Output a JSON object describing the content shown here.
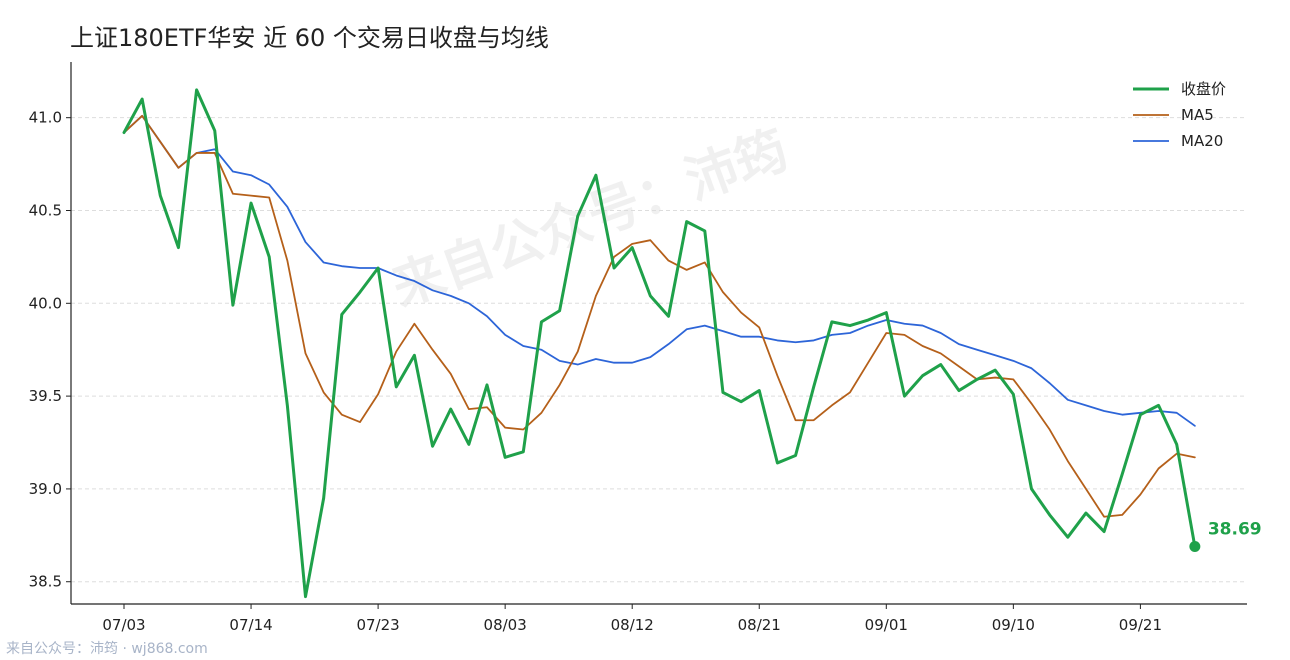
{
  "title": "上证180ETF华安 近 60 个交易日收盘与均线",
  "watermark": "来自公众号：沛筠",
  "footer": "来自公众号：沛筠 · wj868.com",
  "colors": {
    "close": "#1fa14a",
    "ma5": "#b5601a",
    "ma20": "#2d65d8",
    "grid": "#dddddd",
    "axis": "#222222"
  },
  "chart_data": {
    "type": "line",
    "title": "上证180ETF华安 近 60 个交易日收盘与均线",
    "x_tick_labels": [
      "07/03",
      "07/14",
      "07/23",
      "08/03",
      "08/12",
      "08/21",
      "09/01",
      "09/10",
      "09/21"
    ],
    "x_tick_indices": [
      0,
      7,
      14,
      21,
      28,
      35,
      42,
      49,
      56
    ],
    "ylim": [
      38.38,
      41.3
    ],
    "y_ticks": [
      38.5,
      39.0,
      39.5,
      40.0,
      40.5,
      41.0
    ],
    "grid": "horizontal dashed",
    "legend_position": "top-right",
    "n_points": 60,
    "series": [
      {
        "name": "收盘价",
        "key": "close",
        "values": [
          40.92,
          41.1,
          40.58,
          40.3,
          41.15,
          40.93,
          39.99,
          40.54,
          40.25,
          39.45,
          38.42,
          38.95,
          39.94,
          40.06,
          40.19,
          39.55,
          39.72,
          39.23,
          39.43,
          39.24,
          39.56,
          39.17,
          39.2,
          39.9,
          39.96,
          40.47,
          40.69,
          40.19,
          40.3,
          40.04,
          39.93,
          40.44,
          40.39,
          39.52,
          39.47,
          39.53,
          39.14,
          39.18,
          39.55,
          39.9,
          39.88,
          39.91,
          39.95,
          39.5,
          39.61,
          39.67,
          39.53,
          39.59,
          39.64,
          39.51,
          39.0,
          38.86,
          38.74,
          38.87,
          38.77,
          39.08,
          39.4,
          39.45,
          39.24,
          38.69
        ]
      },
      {
        "name": "MA5",
        "key": "ma5",
        "values": [
          40.92,
          41.01,
          40.87,
          40.73,
          40.81,
          40.81,
          40.59,
          40.58,
          40.57,
          40.23,
          39.73,
          39.52,
          39.4,
          39.36,
          39.51,
          39.74,
          39.89,
          39.75,
          39.62,
          39.43,
          39.44,
          39.33,
          39.32,
          39.41,
          39.56,
          39.74,
          40.04,
          40.25,
          40.32,
          40.34,
          40.23,
          40.18,
          40.22,
          40.06,
          39.95,
          39.87,
          39.61,
          39.37,
          39.37,
          39.45,
          39.52,
          39.68,
          39.84,
          39.83,
          39.77,
          39.73,
          39.66,
          39.59,
          39.6,
          39.59,
          39.46,
          39.32,
          39.15,
          39.0,
          38.85,
          38.86,
          38.97,
          39.11,
          39.19,
          39.17
        ]
      },
      {
        "name": "MA20",
        "key": "ma20",
        "values": [
          40.92,
          41.01,
          40.87,
          40.73,
          40.81,
          40.83,
          40.71,
          40.69,
          40.64,
          40.52,
          40.33,
          40.22,
          40.2,
          40.19,
          40.19,
          40.15,
          40.12,
          40.07,
          40.04,
          40.0,
          39.93,
          39.83,
          39.77,
          39.75,
          39.69,
          39.67,
          39.7,
          39.68,
          39.68,
          39.71,
          39.78,
          39.86,
          39.88,
          39.85,
          39.82,
          39.82,
          39.8,
          39.79,
          39.8,
          39.83,
          39.84,
          39.88,
          39.91,
          39.89,
          39.88,
          39.84,
          39.78,
          39.75,
          39.72,
          39.69,
          39.65,
          39.57,
          39.48,
          39.45,
          39.42,
          39.4,
          39.41,
          39.42,
          39.41,
          39.34
        ]
      }
    ],
    "last_value_label": "38.69"
  }
}
